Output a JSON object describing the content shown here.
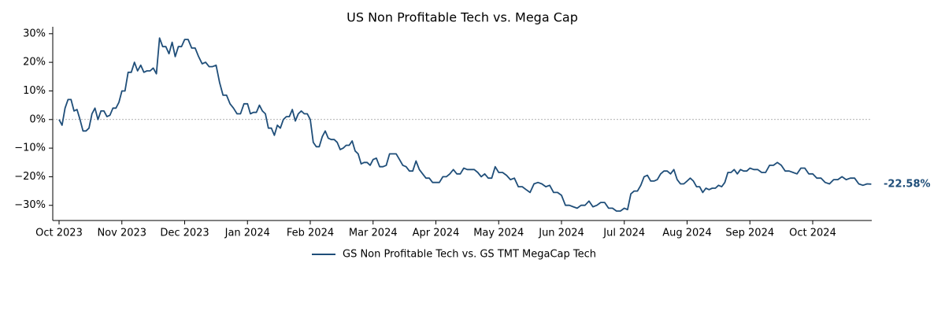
{
  "chart_data": {
    "type": "line",
    "title": "US Non Profitable Tech vs. Mega Cap",
    "x": [
      "Oct 2023",
      "Oct 2023",
      "Oct 2023",
      "Oct 2023",
      "Oct 2023",
      "Oct 2023",
      "Oct 2023",
      "Oct 2023",
      "Oct 2023",
      "Oct 2023",
      "Oct 2023",
      "Oct 2023",
      "Oct 2023",
      "Oct 2023",
      "Oct 2023",
      "Oct 2023",
      "Oct 2023",
      "Oct 2023",
      "Oct 2023",
      "Oct 2023",
      "Oct 2023",
      "Nov 2023",
      "Nov 2023",
      "Nov 2023",
      "Nov 2023",
      "Nov 2023",
      "Nov 2023",
      "Nov 2023",
      "Nov 2023",
      "Nov 2023",
      "Nov 2023",
      "Nov 2023",
      "Nov 2023",
      "Nov 2023",
      "Nov 2023",
      "Nov 2023",
      "Nov 2023",
      "Nov 2023",
      "Nov 2023",
      "Nov 2023",
      "Nov 2023",
      "Dec 2023",
      "Dec 2023",
      "Dec 2023",
      "Dec 2023",
      "Dec 2023",
      "Dec 2023",
      "Dec 2023",
      "Dec 2023",
      "Dec 2023",
      "Dec 2023",
      "Dec 2023",
      "Dec 2023",
      "Dec 2023",
      "Dec 2023",
      "Dec 2023",
      "Dec 2023",
      "Dec 2023",
      "Dec 2023",
      "Jan 2024",
      "Jan 2024",
      "Jan 2024",
      "Jan 2024",
      "Jan 2024",
      "Jan 2024",
      "Jan 2024",
      "Jan 2024",
      "Jan 2024",
      "Jan 2024",
      "Jan 2024",
      "Jan 2024",
      "Jan 2024",
      "Jan 2024",
      "Jan 2024",
      "Jan 2024",
      "Jan 2024",
      "Jan 2024",
      "Jan 2024",
      "Jan 2024",
      "Jan 2024",
      "Feb 2024",
      "Feb 2024",
      "Feb 2024",
      "Feb 2024",
      "Feb 2024",
      "Feb 2024",
      "Feb 2024",
      "Feb 2024",
      "Feb 2024",
      "Feb 2024",
      "Feb 2024",
      "Feb 2024",
      "Feb 2024",
      "Feb 2024",
      "Feb 2024",
      "Feb 2024",
      "Feb 2024",
      "Feb 2024",
      "Feb 2024",
      "Feb 2024",
      "Feb 2024",
      "Mar 2024",
      "Mar 2024",
      "Mar 2024",
      "Mar 2024",
      "Mar 2024",
      "Mar 2024",
      "Mar 2024",
      "Mar 2024",
      "Mar 2024",
      "Mar 2024",
      "Mar 2024",
      "Mar 2024",
      "Mar 2024",
      "Mar 2024",
      "Mar 2024",
      "Mar 2024",
      "Mar 2024",
      "Mar 2024",
      "Mar 2024",
      "Apr 2024",
      "Apr 2024",
      "Apr 2024",
      "Apr 2024",
      "Apr 2024",
      "Apr 2024",
      "Apr 2024",
      "Apr 2024",
      "Apr 2024",
      "Apr 2024",
      "Apr 2024",
      "Apr 2024",
      "Apr 2024",
      "Apr 2024",
      "Apr 2024",
      "Apr 2024",
      "Apr 2024",
      "Apr 2024",
      "May 2024",
      "May 2024",
      "May 2024",
      "May 2024",
      "May 2024",
      "May 2024",
      "May 2024",
      "May 2024",
      "May 2024",
      "May 2024",
      "May 2024",
      "May 2024",
      "May 2024",
      "May 2024",
      "May 2024",
      "May 2024",
      "Jun 2024",
      "Jun 2024",
      "Jun 2024",
      "Jun 2024",
      "Jun 2024",
      "Jun 2024",
      "Jun 2024",
      "Jun 2024",
      "Jun 2024",
      "Jun 2024",
      "Jun 2024",
      "Jun 2024",
      "Jun 2024",
      "Jun 2024",
      "Jun 2024",
      "Jun 2024",
      "Jul 2024",
      "Jul 2024",
      "Jul 2024",
      "Jul 2024",
      "Jul 2024",
      "Jul 2024",
      "Jul 2024",
      "Jul 2024",
      "Jul 2024",
      "Jul 2024",
      "Jul 2024",
      "Jul 2024",
      "Jul 2024",
      "Jul 2024",
      "Jul 2024",
      "Jul 2024",
      "Jul 2024",
      "Jul 2024",
      "Jul 2024",
      "Aug 2024",
      "Aug 2024",
      "Aug 2024",
      "Aug 2024",
      "Aug 2024",
      "Aug 2024",
      "Aug 2024",
      "Aug 2024",
      "Aug 2024",
      "Aug 2024",
      "Aug 2024",
      "Aug 2024",
      "Aug 2024",
      "Aug 2024",
      "Aug 2024",
      "Aug 2024",
      "Aug 2024",
      "Aug 2024",
      "Aug 2024",
      "Aug 2024",
      "Sep 2024",
      "Sep 2024",
      "Sep 2024",
      "Sep 2024",
      "Sep 2024",
      "Sep 2024",
      "Sep 2024",
      "Sep 2024",
      "Sep 2024",
      "Sep 2024",
      "Sep 2024",
      "Sep 2024",
      "Sep 2024",
      "Sep 2024",
      "Sep 2024",
      "Sep 2024",
      "Oct 2024",
      "Oct 2024",
      "Oct 2024",
      "Oct 2024",
      "Oct 2024",
      "Oct 2024",
      "Oct 2024",
      "Oct 2024",
      "Oct 2024",
      "Oct 2024",
      "Oct 2024",
      "Oct 2024",
      "Oct 2024",
      "Oct 2024",
      "Oct 2024"
    ],
    "series": [
      {
        "name": "GS Non Profitable Tech vs. GS TMT MegaCap Tech",
        "color": "#1f4e79",
        "values": [
          0,
          -2,
          4,
          7,
          7,
          3,
          3.5,
          0,
          -4,
          -4,
          -3,
          2,
          4,
          0,
          3,
          3,
          1,
          1.5,
          4,
          4,
          6,
          10,
          10,
          16.5,
          16.5,
          20,
          17,
          19,
          16.5,
          17,
          17,
          18,
          16,
          28.5,
          25.5,
          25.5,
          23,
          27,
          22,
          25.5,
          25.5,
          28,
          28,
          25,
          25,
          22,
          19.5,
          20,
          18.5,
          18.5,
          19,
          13,
          8.5,
          8.5,
          5.5,
          4,
          2,
          2,
          5.5,
          5.5,
          2,
          2.5,
          2.5,
          5,
          3,
          2,
          -3,
          -3,
          -5.5,
          -2,
          -3,
          0,
          1,
          1,
          3.5,
          -0.5,
          2,
          3,
          2,
          2,
          0,
          -8,
          -9.5,
          -9.5,
          -6,
          -4,
          -6.5,
          -7,
          -7,
          -8,
          -10.5,
          -10,
          -9,
          -9,
          -7.5,
          -11,
          -12,
          -15.5,
          -15,
          -15,
          -16,
          -14,
          -13.5,
          -16.5,
          -16.5,
          -16,
          -12,
          -12,
          -12,
          -14,
          -16,
          -16.5,
          -18,
          -18,
          -14.5,
          -17.5,
          -19,
          -20.5,
          -20.5,
          -22,
          -22,
          -22,
          -20,
          -20,
          -19,
          -17.5,
          -19,
          -19,
          -17,
          -17.5,
          -17.5,
          -17.5,
          -18.5,
          -20,
          -19,
          -20.5,
          -20.5,
          -16.5,
          -18.5,
          -18.5,
          -19.5,
          -21,
          -20.5,
          -23.5,
          -23.5,
          -24.5,
          -25.5,
          -22.5,
          -22,
          -22.5,
          -23.5,
          -23,
          -25.5,
          -25.5,
          -26.5,
          -30,
          -30,
          -30.5,
          -31,
          -30,
          -30,
          -28.5,
          -30.5,
          -30,
          -29,
          -29,
          -31,
          -31,
          -32,
          -32,
          -31,
          -31.5,
          -26,
          -25,
          -25,
          -23,
          -20,
          -19.5,
          -21.5,
          -21.5,
          -21,
          -19,
          -18,
          -18,
          -19,
          -17.5,
          -21,
          -22.5,
          -22.5,
          -21.5,
          -20.5,
          -21.5,
          -23.5,
          -23.5,
          -25.5,
          -24,
          -24.5,
          -24,
          -24,
          -23,
          -23.5,
          -22,
          -18.5,
          -18.5,
          -17.5,
          -19,
          -17.5,
          -18,
          -18,
          -17,
          -17.5,
          -17.5,
          -18.5,
          -18.5,
          -16,
          -16,
          -15,
          -16,
          -18,
          -18,
          -18.5,
          -19,
          -17,
          -17,
          -19,
          -19,
          -20.5,
          -20.5,
          -22,
          -22.5,
          -21,
          -21,
          -20,
          -21,
          -20.5,
          -20.5,
          -22.5,
          -23,
          -22.5,
          -22.58
        ]
      }
    ],
    "last_value_label": "-22.58%",
    "xticks": [
      "Oct 2023",
      "Nov 2023",
      "Dec 2023",
      "Jan 2024",
      "Feb 2024",
      "Mar 2024",
      "Apr 2024",
      "May 2024",
      "Jun 2024",
      "Jul 2024",
      "Aug 2024",
      "Sep 2024",
      "Oct 2024"
    ],
    "ylim": [
      -35.3,
      31.6
    ],
    "yticks": [
      {
        "value": -30,
        "label": "−30%"
      },
      {
        "value": -20,
        "label": "−20%"
      },
      {
        "value": -10,
        "label": "−10%"
      },
      {
        "value": 0,
        "label": "0%"
      },
      {
        "value": 10,
        "label": "10%"
      },
      {
        "value": 20,
        "label": "20%"
      },
      {
        "value": 30,
        "label": "30%"
      }
    ],
    "reference_line": 0,
    "legend": "bottom"
  }
}
